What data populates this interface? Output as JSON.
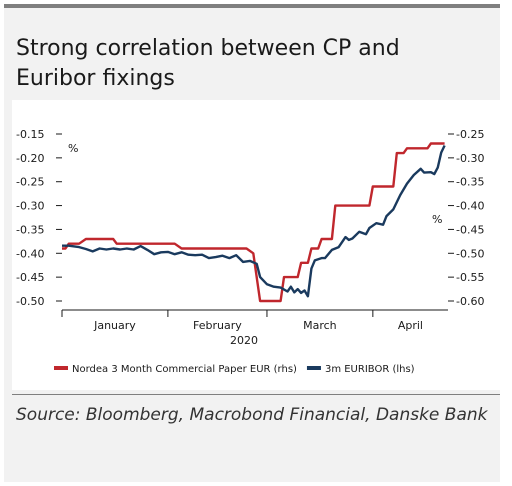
{
  "title": "Strong correlation between CP and Euribor fixings",
  "source": "Source: Bloomberg, Macrobond Financial, Danske Bank",
  "chart_data": {
    "type": "line",
    "left_axis": {
      "unit": "%",
      "ticks": [
        "-0.15",
        "-0.20",
        "-0.25",
        "-0.30",
        "-0.35",
        "-0.40",
        "-0.45",
        "-0.50"
      ],
      "range": [
        -0.5,
        -0.15
      ]
    },
    "right_axis": {
      "unit": "%",
      "ticks": [
        "-0.25",
        "-0.30",
        "-0.35",
        "-0.40",
        "-0.45",
        "-0.50",
        "-0.55",
        "-0.60"
      ],
      "range": [
        -0.6,
        -0.25
      ]
    },
    "x_axis": {
      "months": [
        "January",
        "February",
        "March",
        "April"
      ],
      "year": "2020",
      "range": [
        "2020-01-01",
        "2020-04-23"
      ]
    },
    "legend_position": "bottom",
    "series": [
      {
        "name": "Nordea 3 Month Commercial Paper EUR (rhs)",
        "axis": "right",
        "color": "#c0272d",
        "points": [
          [
            "2020-01-01",
            -0.49
          ],
          [
            "2020-01-02",
            -0.49
          ],
          [
            "2020-01-03",
            -0.48
          ],
          [
            "2020-01-06",
            -0.48
          ],
          [
            "2020-01-08",
            -0.47
          ],
          [
            "2020-01-16",
            -0.47
          ],
          [
            "2020-01-17",
            -0.48
          ],
          [
            "2020-02-03",
            -0.48
          ],
          [
            "2020-02-05",
            -0.49
          ],
          [
            "2020-02-24",
            -0.49
          ],
          [
            "2020-02-26",
            -0.5
          ],
          [
            "2020-02-28",
            -0.6
          ],
          [
            "2020-03-05",
            -0.6
          ],
          [
            "2020-03-06",
            -0.55
          ],
          [
            "2020-03-10",
            -0.55
          ],
          [
            "2020-03-11",
            -0.52
          ],
          [
            "2020-03-13",
            -0.52
          ],
          [
            "2020-03-14",
            -0.49
          ],
          [
            "2020-03-16",
            -0.49
          ],
          [
            "2020-03-17",
            -0.47
          ],
          [
            "2020-03-20",
            -0.47
          ],
          [
            "2020-03-21",
            -0.4
          ],
          [
            "2020-03-31",
            -0.4
          ],
          [
            "2020-04-01",
            -0.36
          ],
          [
            "2020-04-07",
            -0.36
          ],
          [
            "2020-04-08",
            -0.29
          ],
          [
            "2020-04-10",
            -0.29
          ],
          [
            "2020-04-11",
            -0.28
          ],
          [
            "2020-04-17",
            -0.28
          ],
          [
            "2020-04-18",
            -0.27
          ],
          [
            "2020-04-22",
            -0.27
          ]
        ]
      },
      {
        "name": "3m EURIBOR (lhs)",
        "axis": "left",
        "color": "#1a3a5e",
        "points": [
          [
            "2020-01-01",
            -0.384
          ],
          [
            "2020-01-03",
            -0.384
          ],
          [
            "2020-01-06",
            -0.387
          ],
          [
            "2020-01-08",
            -0.391
          ],
          [
            "2020-01-10",
            -0.396
          ],
          [
            "2020-01-12",
            -0.39
          ],
          [
            "2020-01-14",
            -0.392
          ],
          [
            "2020-01-16",
            -0.39
          ],
          [
            "2020-01-18",
            -0.392
          ],
          [
            "2020-01-20",
            -0.39
          ],
          [
            "2020-01-22",
            -0.392
          ],
          [
            "2020-01-24",
            -0.385
          ],
          [
            "2020-01-26",
            -0.393
          ],
          [
            "2020-01-28",
            -0.402
          ],
          [
            "2020-01-30",
            -0.398
          ],
          [
            "2020-02-01",
            -0.397
          ],
          [
            "2020-02-03",
            -0.402
          ],
          [
            "2020-02-05",
            -0.398
          ],
          [
            "2020-02-07",
            -0.403
          ],
          [
            "2020-02-09",
            -0.404
          ],
          [
            "2020-02-11",
            -0.403
          ],
          [
            "2020-02-13",
            -0.41
          ],
          [
            "2020-02-15",
            -0.408
          ],
          [
            "2020-02-17",
            -0.405
          ],
          [
            "2020-02-19",
            -0.41
          ],
          [
            "2020-02-21",
            -0.404
          ],
          [
            "2020-02-23",
            -0.418
          ],
          [
            "2020-02-25",
            -0.416
          ],
          [
            "2020-02-27",
            -0.422
          ],
          [
            "2020-02-28",
            -0.45
          ],
          [
            "2020-03-01",
            -0.465
          ],
          [
            "2020-03-03",
            -0.47
          ],
          [
            "2020-03-05",
            -0.472
          ],
          [
            "2020-03-07",
            -0.48
          ],
          [
            "2020-03-08",
            -0.47
          ],
          [
            "2020-03-09",
            -0.482
          ],
          [
            "2020-03-10",
            -0.475
          ],
          [
            "2020-03-11",
            -0.483
          ],
          [
            "2020-03-12",
            -0.478
          ],
          [
            "2020-03-13",
            -0.49
          ],
          [
            "2020-03-14",
            -0.432
          ],
          [
            "2020-03-15",
            -0.415
          ],
          [
            "2020-03-17",
            -0.41
          ],
          [
            "2020-03-18",
            -0.41
          ],
          [
            "2020-03-20",
            -0.393
          ],
          [
            "2020-03-22",
            -0.387
          ],
          [
            "2020-03-24",
            -0.366
          ],
          [
            "2020-03-25",
            -0.372
          ],
          [
            "2020-03-26",
            -0.369
          ],
          [
            "2020-03-28",
            -0.355
          ],
          [
            "2020-03-30",
            -0.36
          ],
          [
            "2020-03-31",
            -0.347
          ],
          [
            "2020-04-02",
            -0.337
          ],
          [
            "2020-04-04",
            -0.34
          ],
          [
            "2020-04-05",
            -0.322
          ],
          [
            "2020-04-07",
            -0.308
          ],
          [
            "2020-04-09",
            -0.278
          ],
          [
            "2020-04-11",
            -0.254
          ],
          [
            "2020-04-13",
            -0.236
          ],
          [
            "2020-04-15",
            -0.223
          ],
          [
            "2020-04-16",
            -0.231
          ],
          [
            "2020-04-18",
            -0.23
          ],
          [
            "2020-04-19",
            -0.234
          ],
          [
            "2020-04-20",
            -0.22
          ],
          [
            "2020-04-21",
            -0.189
          ],
          [
            "2020-04-22",
            -0.174
          ]
        ]
      }
    ]
  }
}
